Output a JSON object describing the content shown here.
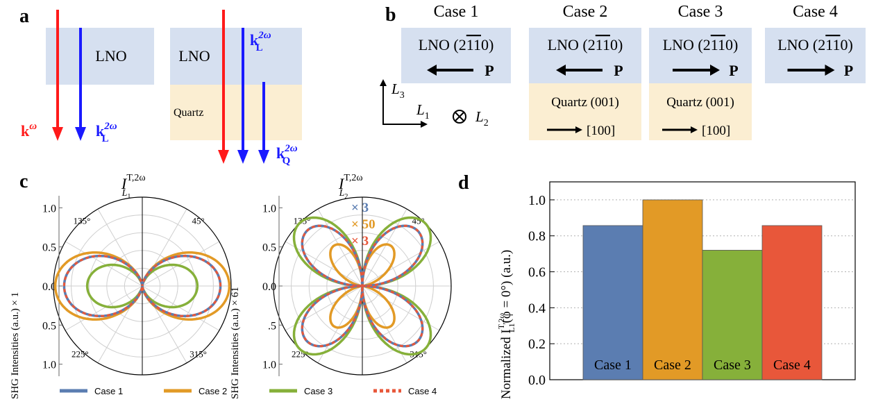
{
  "panels": {
    "a": {
      "label": "a",
      "lno": "LNO",
      "quartz": "Quartz",
      "k_omega": "k",
      "k_omega_sup": "ω",
      "kL": "k",
      "kL_sub": "L",
      "kL_sup": "2ω",
      "kQ": "k",
      "kQ_sub": "Q",
      "kQ_sup": "2ω",
      "colors": {
        "red": "#ff1a1a",
        "blue": "#1a1aff",
        "lno_bg": "#d6e0f0",
        "quartz_bg": "#fbeed2"
      }
    },
    "b": {
      "label": "b",
      "cases": [
        {
          "title": "Case 1",
          "lno": "LNO (2",
          "lno_tail": ")",
          "p": "P",
          "arrow": "left",
          "quartz": null
        },
        {
          "title": "Case 2",
          "lno": "LNO (2",
          "lno_tail": ")",
          "p": "P",
          "arrow": "left",
          "quartz": "Quartz (001)",
          "dir": "[100]"
        },
        {
          "title": "Case 3",
          "lno": "LNO (2",
          "lno_tail": ")",
          "p": "P",
          "arrow": "right",
          "quartz": "Quartz (001)",
          "dir": "[100]"
        },
        {
          "title": "Case 4",
          "lno": "LNO (2",
          "lno_tail": ")",
          "p": "P",
          "arrow": "right",
          "quartz": null
        }
      ],
      "axes": {
        "L3": "L",
        "L3_sub": "3",
        "L1": "L",
        "L1_sub": "1",
        "L2": "L",
        "L2_sub": "2"
      }
    },
    "c": {
      "label": "c",
      "left_title": "I",
      "left_title_sup": "T,2ω",
      "left_title_sub": "L",
      "left_title_subsub": "1",
      "right_title": "I",
      "right_title_sup": "T,2ω",
      "right_title_sub": "L",
      "right_title_subsub": "2",
      "left_ylabel": "SHG Intensities (a.u.) × 1",
      "right_ylabel": "SHG Intensities (a.u.) × 61",
      "left_ticks": [
        "1.0",
        "0.5",
        "0.0",
        "0.5",
        "1.0"
      ],
      "right_ticks": [
        "1.0",
        "0.5",
        "0.0",
        ".5",
        "1.0"
      ],
      "angles": [
        "135°",
        "45°",
        "225°",
        "315°"
      ],
      "multipliers": [
        {
          "text": "× 3",
          "color": "#5b7db1"
        },
        {
          "text": "× 50",
          "color": "#e29a26"
        },
        {
          "text": "× 3",
          "color": "#e8573a"
        }
      ],
      "legend": [
        {
          "name": "Case 1",
          "color": "#5b7db1",
          "dash": false
        },
        {
          "name": "Case 2",
          "color": "#e29a26",
          "dash": false
        },
        {
          "name": "Case 3",
          "color": "#86b03a",
          "dash": false
        },
        {
          "name": "Case 4",
          "color": "#e8573a",
          "dash": true
        }
      ]
    }
  },
  "chart_data": {
    "type": "bar",
    "panel_label": "d",
    "categories": [
      "Case 1",
      "Case 2",
      "Case 3",
      "Case 4"
    ],
    "values": [
      0.857,
      1.0,
      0.72,
      0.857
    ],
    "colors": [
      "#5b7db1",
      "#e29a26",
      "#86b03a",
      "#e8573a"
    ],
    "ylabel": "Normalized I",
    "ylabel_sup": "T,2ω",
    "ylabel_sub": "L1",
    "ylabel_tail": "(φ = 0°) (a.u.)",
    "ylim": [
      0,
      1.1
    ],
    "yticks": [
      "0.0",
      "0.2",
      "0.4",
      "0.6",
      "0.8",
      "1.0"
    ],
    "grid": true
  }
}
